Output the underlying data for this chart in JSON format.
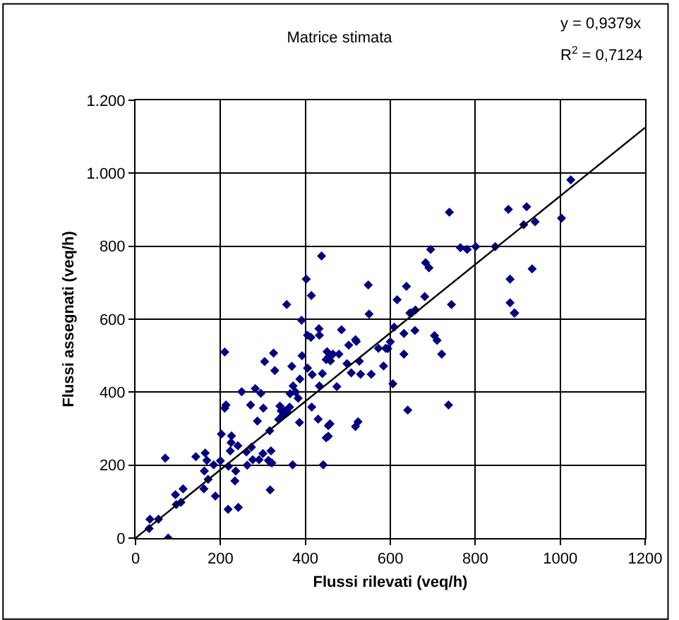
{
  "chart_data": {
    "type": "scatter",
    "title": "Matrice stimata",
    "xlabel": "Flussi rilevati (veq/h)",
    "ylabel": "Flussi assegnati (veq/h)",
    "annotations": [
      "y = 0,9379x",
      "R$^{2}$ = 0,7124"
    ],
    "xlim": [
      0,
      1200
    ],
    "xticks": [
      0,
      200,
      400,
      600,
      800,
      1000,
      1200
    ],
    "ylim": [
      0,
      1200
    ],
    "yticks": [
      0,
      200,
      400,
      600,
      800,
      {
        "value": 1000,
        "label": "1.000"
      },
      {
        "value": 1200,
        "label": "1.200"
      }
    ],
    "grid": true,
    "series": [
      {
        "marker": "diamond",
        "color": "#000080",
        "x": [
          32,
          34,
          54,
          77,
          70,
          94,
          112,
          96,
          107,
          142,
          164,
          168,
          162,
          171,
          161,
          188,
          184,
          200,
          202,
          219,
          218,
          210,
          210,
          213,
          226,
          225,
          223,
          236,
          234,
          242,
          241,
          250,
          261,
          263,
          271,
          273,
          276,
          282,
          287,
          295,
          301,
          300,
          291,
          304,
          313,
          316,
          317,
          319,
          321,
          317,
          325,
          328,
          337,
          340,
          343,
          346,
          351,
          358,
          363,
          364,
          370,
          371,
          368,
          377,
          383,
          386,
          387,
          392,
          391,
          405,
          405,
          413,
          416,
          415,
          430,
          432,
          433,
          433,
          440,
          442,
          451,
          454,
          454,
          449,
          449,
          458,
          459,
          455,
          474,
          465,
          479,
          485,
          502,
          498,
          508,
          518,
          520,
          518,
          524,
          527,
          530,
          550,
          555,
          572,
          584,
          589,
          594,
          600,
          609,
          606,
          632,
          632,
          650,
          658,
          641,
          704,
          710,
          721,
          737,
          892,
          616,
          638,
          646,
          659,
          681,
          683,
          691,
          695,
          739,
          744,
          765,
          781,
          801,
          847,
          878,
          882,
          882,
          893,
          914,
          921,
          934,
          941,
          1003,
          1025,
          356,
          402,
          414,
          438,
          548
        ],
        "values": [
          26,
          52,
          52,
          0,
          219,
          119,
          135,
          92,
          98,
          223,
          233,
          213,
          184,
          161,
          135,
          115,
          201,
          212,
          285,
          197,
          79,
          510,
          356,
          365,
          280,
          262,
          239,
          184,
          157,
          84,
          253,
          401,
          236,
          200,
          365,
          249,
          215,
          410,
          321,
          397,
          356,
          232,
          215,
          484,
          213,
          294,
          208,
          239,
          206,
          132,
          507,
          459,
          325,
          362,
          349,
          336,
          349,
          345,
          359,
          396,
          201,
          417,
          471,
          400,
          383,
          317,
          436,
          500,
          597,
          466,
          556,
          550,
          448,
          359,
          326,
          574,
          556,
          417,
          451,
          201,
          511,
          279,
          308,
          275,
          489,
          313,
          486,
          497,
          415,
          504,
          504,
          571,
          529,
          478,
          453,
          544,
          539,
          306,
          319,
          485,
          449,
          614,
          449,
          520,
          472,
          520,
          519,
          538,
          578,
          423,
          561,
          504,
          617,
          569,
          351,
          555,
          542,
          504,
          365,
          617,
          653,
          690,
          617,
          625,
          662,
          755,
          741,
          791,
          893,
          640,
          796,
          791,
          799,
          799,
          901,
          710,
          645,
          617,
          859,
          908,
          738,
          867,
          877,
          982,
          640,
          710,
          665,
          773,
          694
        ]
      },
      {
        "type": "line",
        "marker": "none",
        "line_style": "solid",
        "color": "#000000",
        "x": [
          0,
          1200
        ],
        "values": [
          0,
          1125
        ]
      }
    ]
  }
}
